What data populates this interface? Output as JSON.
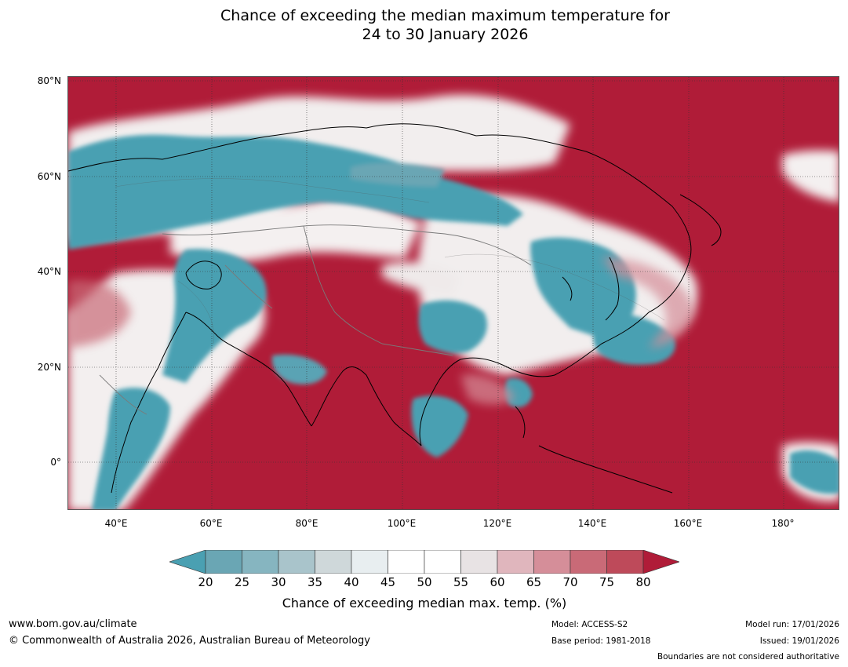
{
  "title_line1": "Chance of exceeding the median maximum temperature for",
  "title_line2": "24 to 30 January 2026",
  "lat_labels": [
    "80°N",
    "60°N",
    "40°N",
    "20°N",
    "0°"
  ],
  "lon_labels": [
    "40°E",
    "60°E",
    "80°E",
    "100°E",
    "120°E",
    "140°E",
    "160°E",
    "180°"
  ],
  "colorbar": {
    "ticks": [
      "20",
      "25",
      "30",
      "35",
      "40",
      "45",
      "50",
      "55",
      "60",
      "65",
      "70",
      "75",
      "80"
    ],
    "colors": [
      "#6aa6b4",
      "#86b5c0",
      "#a9c4cb",
      "#cfd8da",
      "#e8eef0",
      "#ffffff",
      "#ffffff",
      "#e8e3e4",
      "#e0b6bd",
      "#d58e99",
      "#c96a77",
      "#be4a5a"
    ],
    "under_color": "#4aa0b2",
    "over_color": "#b01c38",
    "label": "Chance of exceeding median max. temp. (%)"
  },
  "footer": {
    "url": "www.bom.gov.au/climate",
    "copyright": "© Commonwealth of Australia 2026, Australian Bureau of Meteorology",
    "model": "Model: ACCESS-S2",
    "base_period": "Base period: 1981-2018",
    "model_run": "Model run: 17/01/2026",
    "issued": "Issued: 19/01/2026",
    "disclaimer": "Boundaries are not considered authoritative"
  },
  "colors": {
    "high": "#b01c38",
    "low": "#4aa0b2",
    "neutral": "#ffffff"
  }
}
